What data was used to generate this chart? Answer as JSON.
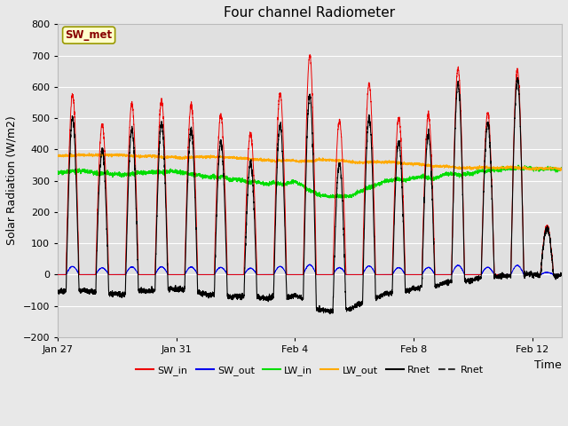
{
  "title": "Four channel Radiometer",
  "ylabel": "Solar Radiation (W/m2)",
  "xlabel": "Time",
  "ylim": [
    -200,
    800
  ],
  "n_days": 17,
  "points_per_day": 288,
  "annotation_text": "SW_met",
  "fig_bg_color": "#e8e8e8",
  "plot_bg_color": "#e0e0e0",
  "SW_in_color": "#ee0000",
  "SW_out_color": "#0000ee",
  "LW_in_color": "#00dd00",
  "LW_out_color": "#ffaa00",
  "Rnet_color": "#000000",
  "grid_color": "#ffffff",
  "xtick_labels": [
    "Jan 27",
    "Jan 31",
    "Feb 4",
    "Feb 8",
    "Feb 12"
  ],
  "xtick_positions": [
    0,
    4,
    8,
    12,
    16
  ],
  "ytick_values": [
    -200,
    -100,
    0,
    100,
    200,
    300,
    400,
    500,
    600,
    700,
    800
  ],
  "title_fontsize": 11,
  "axis_label_fontsize": 9,
  "tick_fontsize": 8,
  "legend_fontsize": 8,
  "sw_in_peaks": [
    575,
    480,
    545,
    555,
    540,
    510,
    450,
    580,
    700,
    490,
    610,
    500,
    510,
    660,
    515,
    655,
    155
  ],
  "lw_in_night_base": 320,
  "lw_out_base": 360
}
